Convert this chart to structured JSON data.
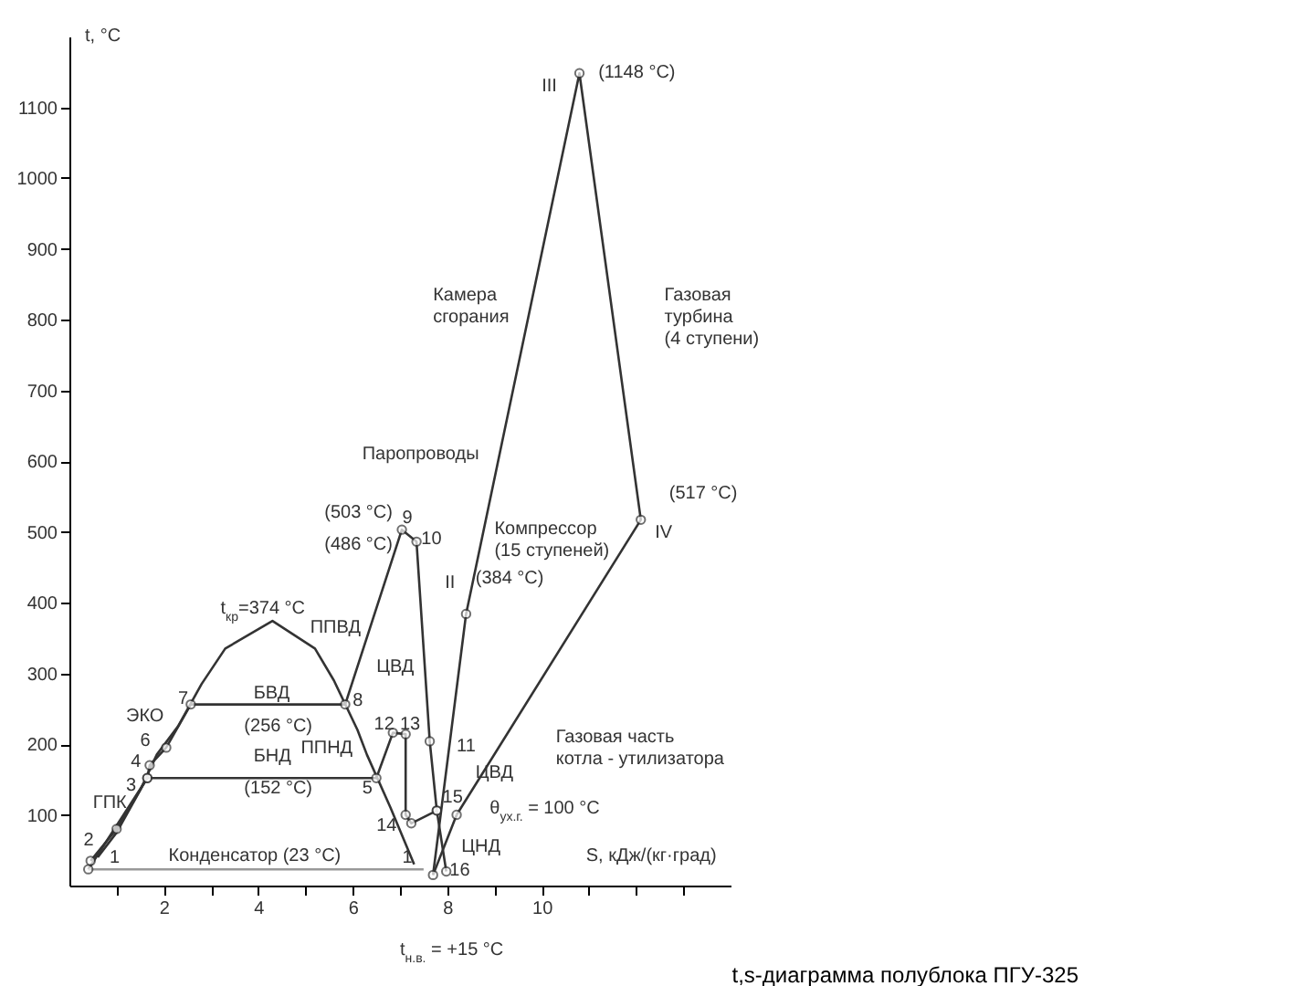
{
  "chart_data": {
    "type": "line",
    "title": "t,s-диаграмма полублока ПГУ-325",
    "xlabel": "S, кДж/(кг·град)",
    "ylabel": "t, °C",
    "xlim": [
      0,
      14
    ],
    "ylim": [
      0,
      1200
    ],
    "xticks": [
      {
        "value": 1,
        "label": null
      },
      2,
      {
        "value": 3,
        "label": null
      },
      4,
      {
        "value": 5,
        "label": null
      },
      6,
      {
        "value": 7,
        "label": null
      },
      8,
      {
        "value": 9,
        "label": null
      },
      10,
      {
        "value": 11,
        "label": null
      },
      {
        "value": 12,
        "label": null
      },
      {
        "value": 13,
        "label": null
      }
    ],
    "yticks": [
      100,
      200,
      300,
      400,
      500,
      600,
      700,
      800,
      900,
      1000,
      1100
    ],
    "grid": false,
    "legend": false,
    "marker": "circle",
    "line_style": "solid",
    "series": [
      {
        "type": "line",
        "color": "#333333",
        "marker": "none",
        "x": [
          0.6,
          1.0,
          1.5,
          1.85,
          2.3,
          2.8,
          3.3,
          4.3,
          5.2,
          5.6,
          6.1,
          6.3,
          6.8,
          7.3
        ],
        "values": [
          40,
          75,
          135,
          185,
          225,
          285,
          335,
          374,
          335,
          290,
          220,
          185,
          110,
          30
        ]
      },
      {
        "type": "line",
        "color": "#333333",
        "x": [
          0.45,
          1.0,
          1.65,
          1.7,
          2.05,
          2.57,
          5.84,
          7.04,
          7.35,
          7.63,
          7.78,
          7.98
        ],
        "values": [
          35,
          80,
          152,
          170,
          195,
          256,
          256,
          503,
          486,
          204,
          106,
          20
        ]
      },
      {
        "type": "line",
        "color": "#333333",
        "x": [
          0.4,
          1.65,
          6.5,
          6.85,
          7.12,
          7.12,
          7.24,
          7.78
        ],
        "values": [
          23,
          152,
          152,
          216,
          214,
          100,
          88,
          106
        ]
      },
      {
        "type": "line",
        "color": "#999999",
        "marker": "none",
        "x": [
          0.4,
          7.5
        ],
        "values": [
          23,
          23
        ]
      },
      {
        "type": "line",
        "color": "#333333",
        "x": [
          7.7,
          8.4,
          10.8,
          12.1,
          8.2
        ],
        "values": [
          15,
          384,
          1148,
          517,
          100
        ]
      },
      {
        "type": "line",
        "color": "#333333",
        "marker": "none",
        "x": [
          8.2,
          7.7
        ],
        "values": [
          100,
          15
        ]
      }
    ],
    "annotations": [
      "(1148 °C)",
      "III",
      "Камера\nсгорания",
      "Газовая\nтурбина\n(4 ступени)",
      "(517 °C)",
      "IV",
      "Паропроводы",
      "Компрессор\n(15 ступеней)",
      "(503 °C)",
      "(486 °C)",
      "9",
      "10",
      "(384 °C)",
      "II",
      "t$_{кр}$=374 °C",
      "ППВД",
      "ЦВД",
      "БВД",
      "(256 °C)",
      "ЭКО",
      "7",
      "8",
      "БНД",
      "(152 °C)",
      "ППНД",
      "12",
      "13",
      "11",
      "6",
      "4",
      "3",
      "ГПК",
      "2",
      "1",
      "5",
      "ЦВД",
      "14",
      "15",
      "16",
      "1",
      "θ$_{ух.г.}$ = 100 °C",
      "ЦНД",
      "Газовая часть\nкотла - утилизатора",
      "Конденсатор (23 °C)",
      "t$_{н.в.}$ = +15 °C"
    ]
  }
}
